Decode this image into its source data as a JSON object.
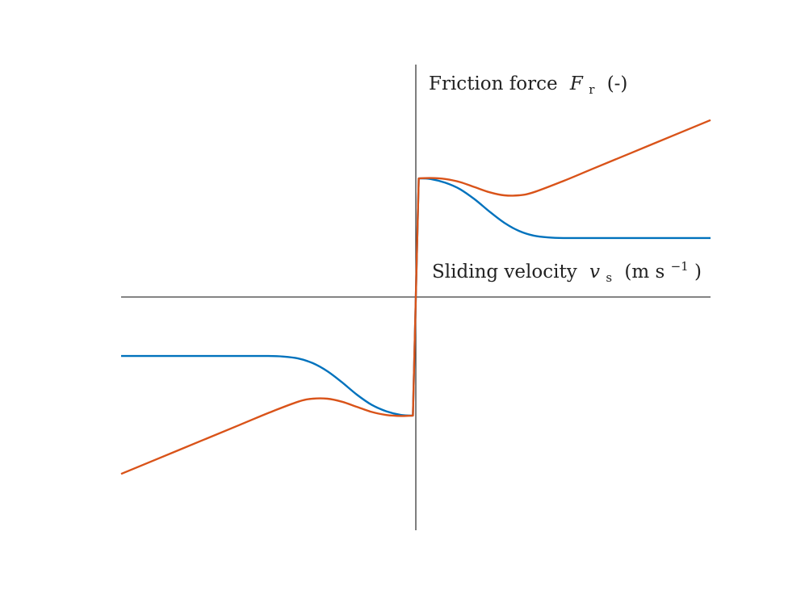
{
  "chart_data": {
    "type": "line",
    "title": "",
    "ylabel": {
      "main": "Friction force",
      "symbol": "F",
      "subscript": "r",
      "unit": "(-)"
    },
    "xlabel": {
      "main": "Sliding velocity",
      "symbol": "v",
      "subscript": "s",
      "unit_open": "(m s",
      "unit_exponent": "−1",
      "unit_close": ")"
    },
    "xlim": [
      -1,
      1
    ],
    "ylim": [
      -1.15,
      1.15
    ],
    "grid": false,
    "ticks": false,
    "legend": "none",
    "series": [
      {
        "color": "#0072BD",
        "x": [
          -1.0,
          -0.8,
          -0.6,
          -0.5,
          -0.45,
          -0.4,
          -0.35,
          -0.3,
          -0.25,
          -0.2,
          -0.15,
          -0.1,
          -0.05,
          -0.01,
          0.0,
          0.01,
          0.05,
          0.1,
          0.15,
          0.2,
          0.25,
          0.3,
          0.35,
          0.4,
          0.45,
          0.5,
          0.6,
          0.8,
          1.0
        ],
        "y": [
          -0.29,
          -0.29,
          -0.29,
          -0.29,
          -0.293,
          -0.302,
          -0.325,
          -0.365,
          -0.42,
          -0.48,
          -0.53,
          -0.562,
          -0.58,
          -0.583,
          0.0,
          0.583,
          0.58,
          0.562,
          0.53,
          0.48,
          0.42,
          0.365,
          0.325,
          0.302,
          0.293,
          0.29,
          0.29,
          0.29,
          0.29
        ]
      },
      {
        "color": "#D95319",
        "x": [
          -1.0,
          -0.8,
          -0.6,
          -0.5,
          -0.4,
          -0.35,
          -0.3,
          -0.25,
          -0.2,
          -0.15,
          -0.1,
          -0.05,
          -0.01,
          0.0,
          0.01,
          0.05,
          0.1,
          0.15,
          0.2,
          0.25,
          0.3,
          0.35,
          0.4,
          0.5,
          0.6,
          0.8,
          1.0
        ],
        "y": [
          -0.87,
          -0.75,
          -0.63,
          -0.57,
          -0.515,
          -0.5,
          -0.5,
          -0.515,
          -0.54,
          -0.565,
          -0.58,
          -0.585,
          -0.583,
          0.0,
          0.583,
          0.585,
          0.58,
          0.565,
          0.54,
          0.515,
          0.5,
          0.5,
          0.515,
          0.57,
          0.63,
          0.75,
          0.87
        ]
      }
    ]
  }
}
